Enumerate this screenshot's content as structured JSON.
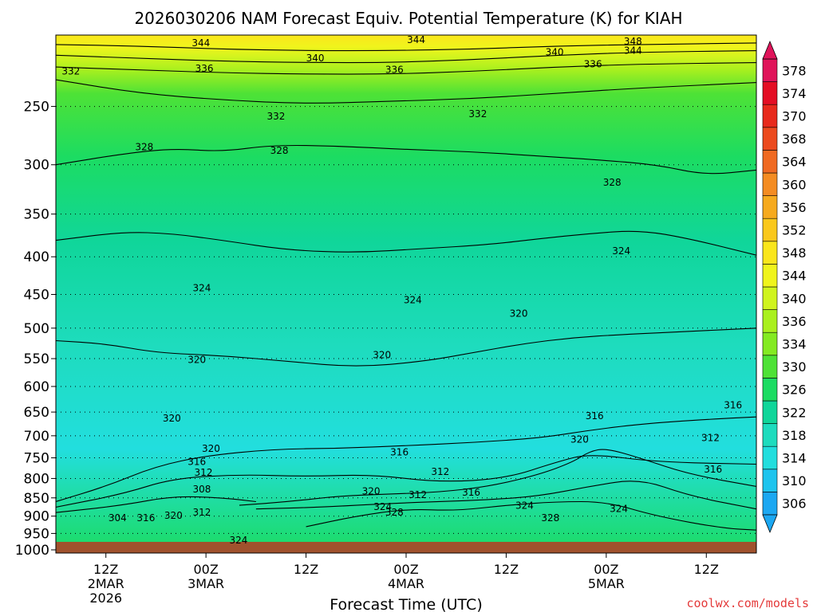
{
  "chart_data": {
    "type": "heatmap",
    "title": "2026030206 NAM Forecast Equiv. Potential Temperature (K) for KIAH",
    "xlabel": "Forecast Time (UTC)",
    "ylabel": "",
    "credit": "coolwx.com/models",
    "x_range_hours": [
      0,
      84
    ],
    "x_ticks": [
      {
        "hour": 6,
        "label": "12Z",
        "date": "2MAR",
        "year": "2026"
      },
      {
        "hour": 18,
        "label": "00Z",
        "date": "3MAR",
        "year": ""
      },
      {
        "hour": 30,
        "label": "12Z",
        "date": "",
        "year": ""
      },
      {
        "hour": 42,
        "label": "00Z",
        "date": "4MAR",
        "year": ""
      },
      {
        "hour": 54,
        "label": "12Z",
        "date": "",
        "year": ""
      },
      {
        "hour": 66,
        "label": "00Z",
        "date": "5MAR",
        "year": ""
      },
      {
        "hour": 78,
        "label": "12Z",
        "date": "",
        "year": ""
      }
    ],
    "y_axis": {
      "unit": "hPa",
      "ticks": [
        250,
        300,
        350,
        400,
        450,
        500,
        550,
        600,
        650,
        700,
        750,
        800,
        850,
        900,
        950,
        1000
      ],
      "tick_labels": [
        "250",
        "300",
        "350",
        "400",
        "450",
        "500",
        "550",
        "600",
        "650",
        "700",
        "750",
        "800",
        "850",
        "900",
        "950",
        "1000"
      ],
      "top_hPa": 200,
      "bottom_hPa": 1010,
      "log_scale": true,
      "ground_hPa": 1010
    },
    "colorbar": {
      "unit": "K",
      "levels": [
        306,
        310,
        314,
        318,
        322,
        326,
        330,
        334,
        336,
        340,
        344,
        348,
        352,
        356,
        360,
        364,
        368,
        370,
        374,
        378
      ],
      "level_labels": [
        "306",
        "310",
        "314",
        "318",
        "322",
        "326",
        "330",
        "334",
        "336",
        "340",
        "344",
        "348",
        "352",
        "356",
        "360",
        "364",
        "368",
        "370",
        "374",
        "378"
      ],
      "colors": [
        "#1ca8f2",
        "#1ec4ee",
        "#22dede",
        "#1edcbe",
        "#10d69a",
        "#1cdc62",
        "#4ee236",
        "#84ea22",
        "#aaf01e",
        "#d0f41e",
        "#f0f41c",
        "#fae61c",
        "#fac81c",
        "#f6aa1e",
        "#f48c22",
        "#f06a22",
        "#ec4a1e",
        "#e82a1c",
        "#e40e24",
        "#e0145a"
      ]
    },
    "isentropes": [
      {
        "K": 344,
        "points": [
          [
            0,
            206
          ],
          [
            10,
            207
          ],
          [
            20,
            209
          ],
          [
            30,
            210
          ],
          [
            40,
            210
          ],
          [
            50,
            209
          ],
          [
            60,
            207
          ],
          [
            70,
            206
          ],
          [
            84,
            205
          ]
        ]
      },
      {
        "K": 340,
        "points": [
          [
            0,
            213
          ],
          [
            10,
            215
          ],
          [
            20,
            217
          ],
          [
            30,
            218
          ],
          [
            40,
            218
          ],
          [
            50,
            216
          ],
          [
            60,
            213
          ],
          [
            70,
            211
          ],
          [
            84,
            210
          ]
        ]
      },
      {
        "K": 336,
        "points": [
          [
            0,
            221
          ],
          [
            10,
            223
          ],
          [
            20,
            225
          ],
          [
            30,
            226
          ],
          [
            40,
            226
          ],
          [
            50,
            224
          ],
          [
            60,
            221
          ],
          [
            70,
            219
          ],
          [
            84,
            218
          ]
        ]
      },
      {
        "K": 332,
        "points": [
          [
            0,
            230
          ],
          [
            10,
            240
          ],
          [
            20,
            245
          ],
          [
            30,
            248
          ],
          [
            40,
            246
          ],
          [
            50,
            244
          ],
          [
            60,
            240
          ],
          [
            70,
            236
          ],
          [
            84,
            232
          ]
        ]
      },
      {
        "K": 328,
        "points": [
          [
            0,
            300
          ],
          [
            8,
            290
          ],
          [
            14,
            285
          ],
          [
            20,
            288
          ],
          [
            26,
            282
          ],
          [
            34,
            283
          ],
          [
            42,
            286
          ],
          [
            50,
            288
          ],
          [
            58,
            292
          ],
          [
            66,
            296
          ],
          [
            72,
            300
          ],
          [
            78,
            310
          ],
          [
            84,
            305
          ]
        ]
      },
      {
        "K": 324,
        "points": [
          [
            0,
            380
          ],
          [
            8,
            370
          ],
          [
            14,
            372
          ],
          [
            20,
            380
          ],
          [
            28,
            392
          ],
          [
            36,
            395
          ],
          [
            44,
            390
          ],
          [
            52,
            385
          ],
          [
            58,
            378
          ],
          [
            64,
            372
          ],
          [
            70,
            368
          ],
          [
            76,
            378
          ],
          [
            84,
            398
          ]
        ]
      },
      {
        "K": 320,
        "points": [
          [
            0,
            520
          ],
          [
            6,
            525
          ],
          [
            12,
            540
          ],
          [
            20,
            545
          ],
          [
            28,
            555
          ],
          [
            36,
            565
          ],
          [
            44,
            555
          ],
          [
            50,
            540
          ],
          [
            56,
            525
          ],
          [
            62,
            515
          ],
          [
            68,
            510
          ],
          [
            76,
            505
          ],
          [
            84,
            500
          ]
        ]
      },
      {
        "K": 316,
        "points": [
          [
            0,
            860
          ],
          [
            6,
            820
          ],
          [
            12,
            770
          ],
          [
            18,
            745
          ],
          [
            26,
            730
          ],
          [
            34,
            728
          ],
          [
            42,
            722
          ],
          [
            50,
            715
          ],
          [
            58,
            705
          ],
          [
            64,
            688
          ],
          [
            70,
            675
          ],
          [
            78,
            665
          ],
          [
            84,
            660
          ]
        ]
      },
      {
        "K": 312,
        "points": [
          [
            0,
            875
          ],
          [
            8,
            840
          ],
          [
            14,
            800
          ],
          [
            22,
            790
          ],
          [
            30,
            795
          ],
          [
            38,
            790
          ],
          [
            46,
            810
          ],
          [
            54,
            800
          ],
          [
            60,
            760
          ],
          [
            64,
            740
          ],
          [
            72,
            760
          ],
          [
            84,
            765
          ]
        ]
      },
      {
        "K": 308,
        "points": [
          [
            0,
            890
          ],
          [
            8,
            870
          ],
          [
            14,
            845
          ],
          [
            20,
            850
          ],
          [
            24,
            860
          ]
        ]
      },
      {
        "K": 320,
        "points": [
          [
            22,
            870
          ],
          [
            28,
            860
          ],
          [
            34,
            845
          ],
          [
            40,
            840
          ],
          [
            46,
            835
          ],
          [
            52,
            820
          ],
          [
            58,
            790
          ],
          [
            62,
            760
          ],
          [
            64,
            735
          ],
          [
            66,
            728
          ],
          [
            70,
            750
          ],
          [
            76,
            790
          ],
          [
            84,
            820
          ]
        ]
      },
      {
        "K": 324,
        "points": [
          [
            24,
            880
          ],
          [
            32,
            875
          ],
          [
            40,
            865
          ],
          [
            46,
            860
          ],
          [
            52,
            855
          ],
          [
            58,
            845
          ],
          [
            64,
            820
          ],
          [
            70,
            800
          ],
          [
            76,
            845
          ],
          [
            84,
            880
          ]
        ]
      },
      {
        "K": 328,
        "points": [
          [
            30,
            930
          ],
          [
            36,
            900
          ],
          [
            42,
            880
          ],
          [
            48,
            885
          ],
          [
            54,
            870
          ],
          [
            60,
            860
          ],
          [
            66,
            860
          ],
          [
            72,
            900
          ],
          [
            80,
            935
          ],
          [
            84,
            940
          ]
        ]
      }
    ],
    "contour_labels": [
      {
        "text": "344",
        "hour": 17.4,
        "hPa": 205
      },
      {
        "text": "344",
        "hour": 43.2,
        "hPa": 203
      },
      {
        "text": "348",
        "hour": 69.2,
        "hPa": 204
      },
      {
        "text": "344",
        "hour": 69.2,
        "hPa": 210
      },
      {
        "text": "340",
        "hour": 31.1,
        "hPa": 215
      },
      {
        "text": "340",
        "hour": 59.8,
        "hPa": 211
      },
      {
        "text": "336",
        "hour": 17.8,
        "hPa": 222
      },
      {
        "text": "336",
        "hour": 40.6,
        "hPa": 223
      },
      {
        "text": "336",
        "hour": 64.4,
        "hPa": 219
      },
      {
        "text": "332",
        "hour": 1.8,
        "hPa": 224
      },
      {
        "text": "332",
        "hour": 26.4,
        "hPa": 258
      },
      {
        "text": "332",
        "hour": 50.6,
        "hPa": 256
      },
      {
        "text": "328",
        "hour": 10.6,
        "hPa": 284
      },
      {
        "text": "328",
        "hour": 26.8,
        "hPa": 287
      },
      {
        "text": "328",
        "hour": 66.7,
        "hPa": 317
      },
      {
        "text": "324",
        "hour": 67.8,
        "hPa": 393
      },
      {
        "text": "324",
        "hour": 17.5,
        "hPa": 441
      },
      {
        "text": "324",
        "hour": 42.8,
        "hPa": 458
      },
      {
        "text": "320",
        "hour": 55.5,
        "hPa": 478
      },
      {
        "text": "320",
        "hour": 16.9,
        "hPa": 552
      },
      {
        "text": "320",
        "hour": 39.1,
        "hPa": 544
      },
      {
        "text": "320",
        "hour": 13.9,
        "hPa": 663
      },
      {
        "text": "316",
        "hour": 64.6,
        "hPa": 658
      },
      {
        "text": "316",
        "hour": 81.2,
        "hPa": 636
      },
      {
        "text": "320",
        "hour": 62.8,
        "hPa": 708
      },
      {
        "text": "312",
        "hour": 78.5,
        "hPa": 705
      },
      {
        "text": "320",
        "hour": 18.6,
        "hPa": 729
      },
      {
        "text": "316",
        "hour": 41.2,
        "hPa": 737
      },
      {
        "text": "316",
        "hour": 16.9,
        "hPa": 759
      },
      {
        "text": "316",
        "hour": 78.8,
        "hPa": 778
      },
      {
        "text": "312",
        "hour": 17.7,
        "hPa": 785
      },
      {
        "text": "312",
        "hour": 46.1,
        "hPa": 783
      },
      {
        "text": "308",
        "hour": 17.5,
        "hPa": 828
      },
      {
        "text": "320",
        "hour": 37.8,
        "hPa": 833
      },
      {
        "text": "312",
        "hour": 43.4,
        "hPa": 842
      },
      {
        "text": "316",
        "hour": 49.8,
        "hPa": 836
      },
      {
        "text": "324",
        "hour": 39.2,
        "hPa": 874
      },
      {
        "text": "324",
        "hour": 56.2,
        "hPa": 871
      },
      {
        "text": "324",
        "hour": 67.5,
        "hPa": 880
      },
      {
        "text": "328",
        "hour": 40.6,
        "hPa": 890
      },
      {
        "text": "328",
        "hour": 59.3,
        "hPa": 905
      },
      {
        "text": "304",
        "hour": 7.4,
        "hPa": 905
      },
      {
        "text": "316",
        "hour": 10.8,
        "hPa": 905
      },
      {
        "text": "320",
        "hour": 14.1,
        "hPa": 898
      },
      {
        "text": "312",
        "hour": 17.5,
        "hPa": 890
      },
      {
        "text": "324",
        "hour": 21.9,
        "hPa": 970
      }
    ]
  },
  "theme": {
    "ground": "#a0522d",
    "frame": "#000000",
    "title_color": "#000000",
    "credit_color": "#e43a3a"
  }
}
